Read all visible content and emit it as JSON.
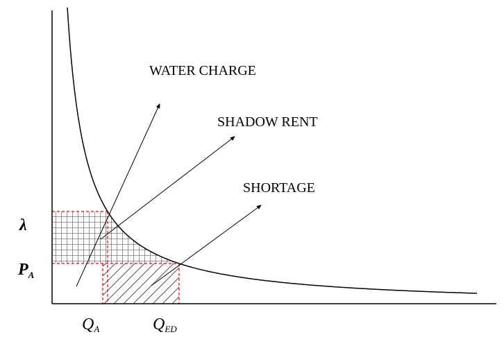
{
  "labels": {
    "water_charge": "WATER CHARGE",
    "shadow_rent": "SHADOW RENT",
    "shortage": "SHORTAGE"
  },
  "y_axis_labels": {
    "lambda": "λ",
    "price": {
      "main": "P",
      "sub": "A"
    }
  },
  "x_axis_labels": {
    "q_a": {
      "main": "Q",
      "sub": "A"
    },
    "q_ed": {
      "main": "Q",
      "sub": "ED"
    }
  }
}
